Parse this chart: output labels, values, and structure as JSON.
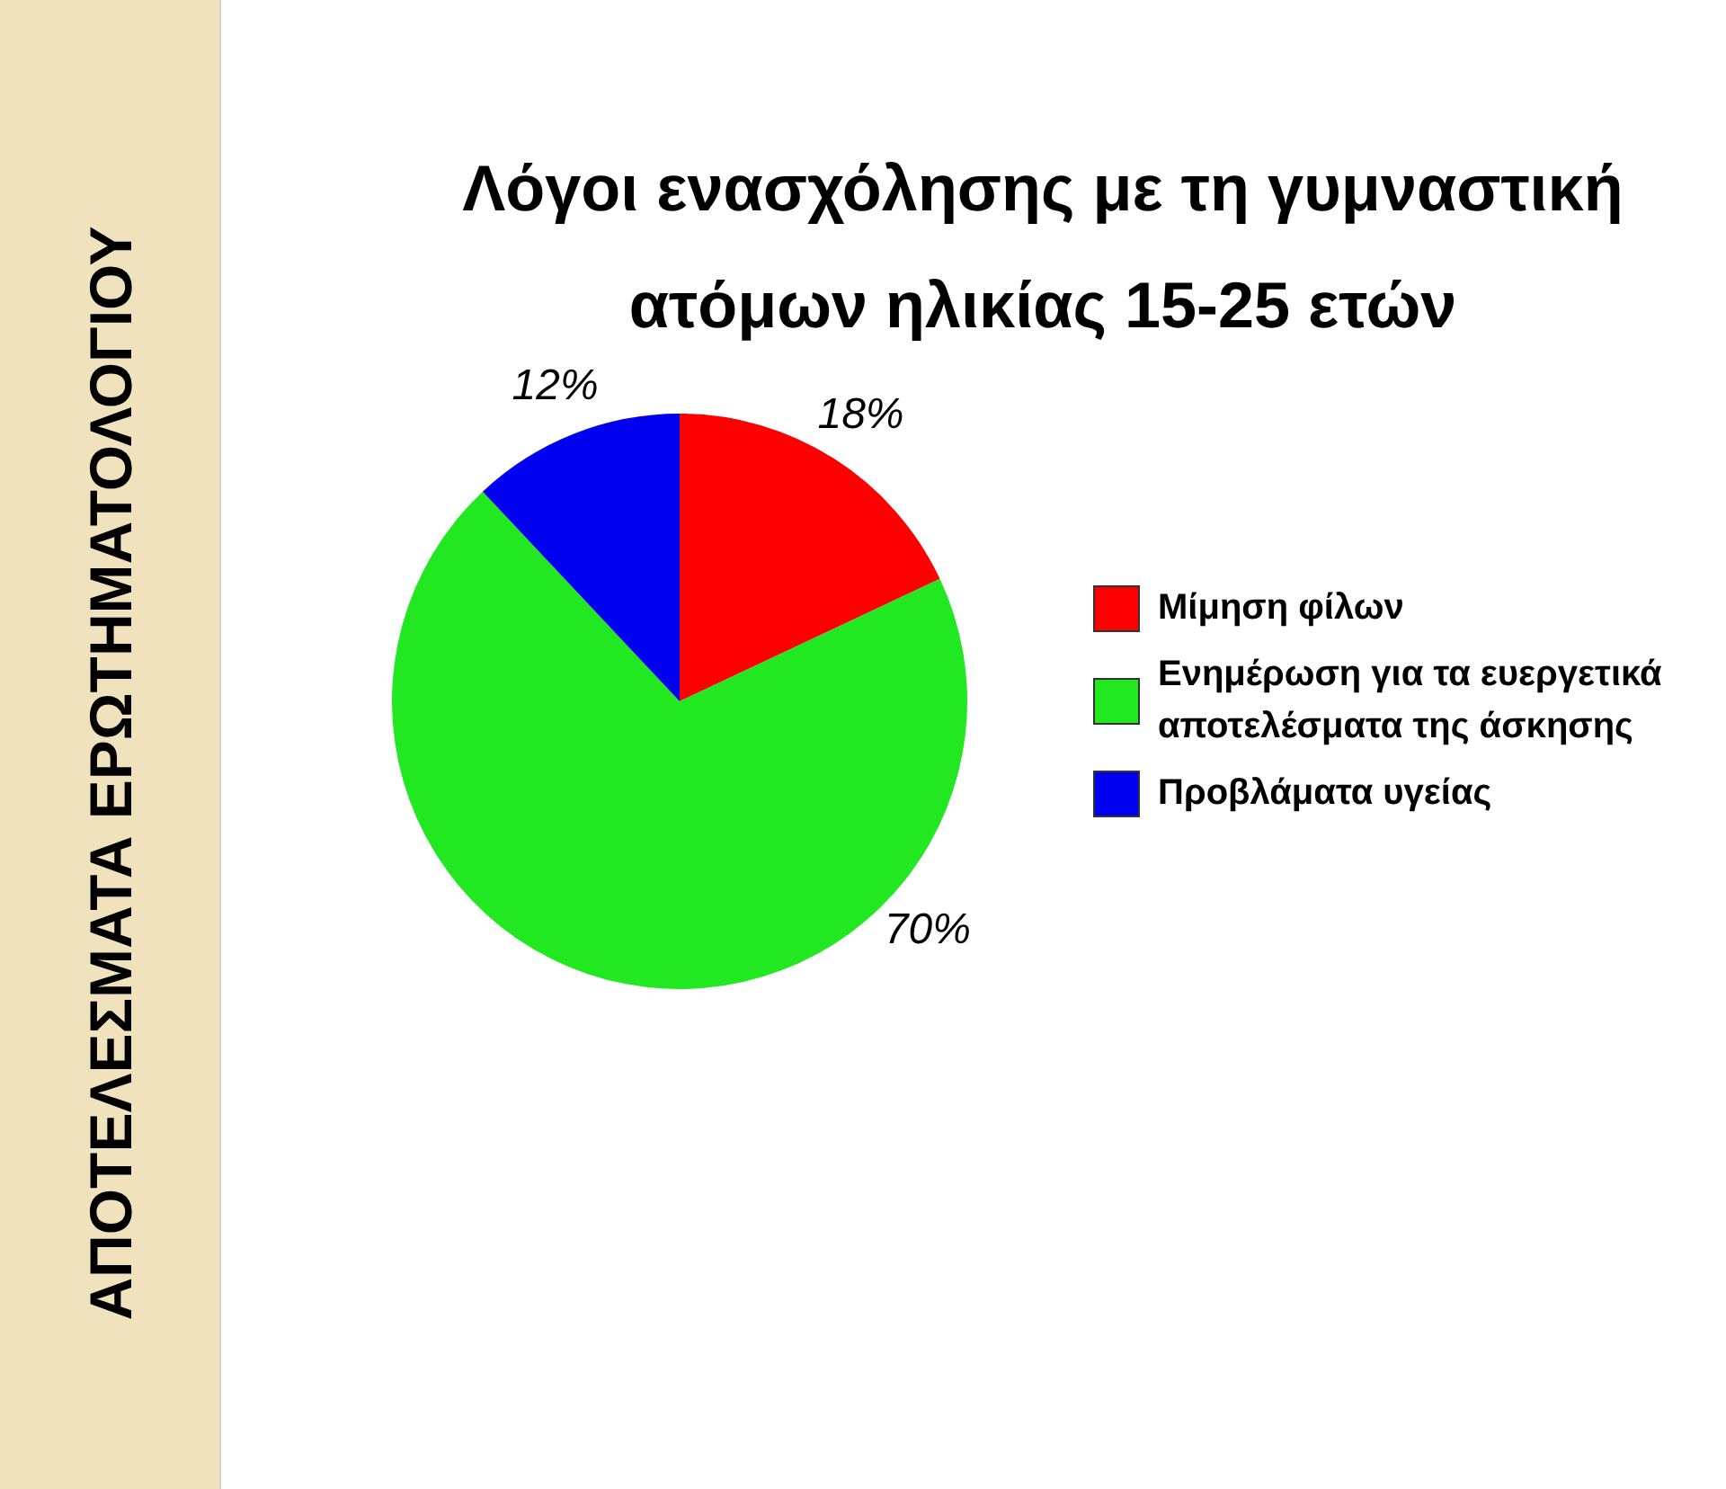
{
  "chart_data": {
    "type": "pie",
    "title": "Λόγοι ενασχόλησης με τη γυμναστική ατόμων ηλικίας 15-25 ετών",
    "categories": [
      "Μίμηση φίλων",
      "Ενημέρωση για τα ευεργετικά αποτελέσματα της άσκησης",
      "Προβλάματα υγείας"
    ],
    "values": [
      18,
      70,
      12
    ],
    "value_labels": [
      "18%",
      "70%",
      "12%"
    ],
    "colors": [
      "#ff0000",
      "#22e822",
      "#0000f0"
    ],
    "legend": "right",
    "annotations": [
      "ΑΠΟΤΕΛΕΣΜΑΤΑ ΕΡΩΤΗΜΑΤΟΛΟΓΙΟΥ"
    ]
  }
}
